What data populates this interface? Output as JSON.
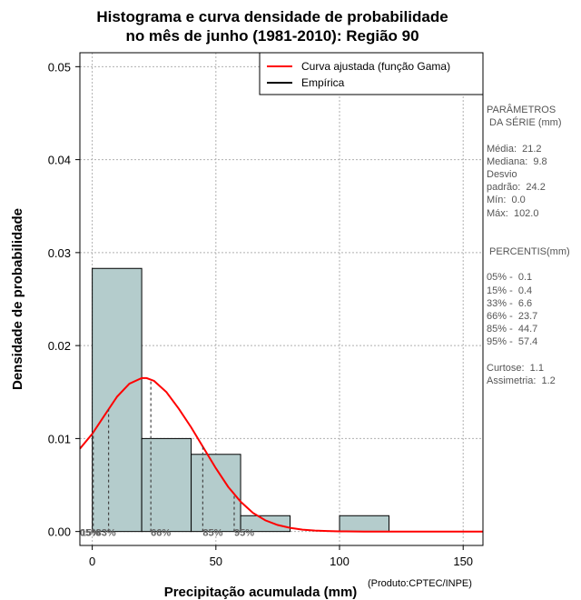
{
  "title_lines": [
    "Histograma e curva densidade de probabilidade",
    "no mês de junho (1981-2010): Região 90"
  ],
  "credit": "(Produto:CPTEC/INPE)",
  "side_panel": {
    "lines": [
      "PARÂMETROS",
      " DA SÉRIE (mm)",
      "",
      "Média:  21.2",
      "Mediana:  9.8",
      "Desvio",
      "padrão:  24.2",
      "Mín:  0.0",
      "Máx:  102.0",
      "",
      "",
      " PERCENTIS(mm)",
      "",
      "05% -  0.1",
      "15% -  0.4",
      "33% -  6.6",
      "66% -  23.7",
      "85% -  44.7",
      "95% -  57.4",
      "",
      "Curtose:  1.1",
      "Assimetria:  1.2"
    ]
  },
  "chart_data": {
    "type": "bar",
    "xlabel": "Precipitação acumulada (mm)",
    "ylabel": "Densidade de probabilidade",
    "xlim": [
      -5,
      158
    ],
    "ylim": [
      -0.0015,
      0.0515
    ],
    "xticks": [
      "0",
      "50",
      "100",
      "150"
    ],
    "xtick_values": [
      0,
      50,
      100,
      150
    ],
    "yticks": [
      "0.00",
      "0.01",
      "0.02",
      "0.03",
      "0.04",
      "0.05"
    ],
    "ytick_values": [
      0,
      0.01,
      0.02,
      0.03,
      0.04,
      0.05
    ],
    "grid": true,
    "bins": [
      {
        "x0": 0,
        "x1": 20,
        "density": 0.0283
      },
      {
        "x0": 20,
        "x1": 40,
        "density": 0.01
      },
      {
        "x0": 40,
        "x1": 60,
        "density": 0.0083
      },
      {
        "x0": 60,
        "x1": 80,
        "density": 0.0017
      },
      {
        "x0": 80,
        "x1": 100,
        "density": 0
      },
      {
        "x0": 100,
        "x1": 120,
        "density": 0.0017
      }
    ],
    "bar_color": "#b4cccc",
    "legend": {
      "position": "top-right",
      "entries": [
        {
          "label": "Curva ajustada (função Gama)",
          "color": "#ff0000"
        },
        {
          "label": "Empírica",
          "color": "#000000"
        }
      ]
    },
    "fitted_curve": {
      "name": "Curva ajustada (função Gama)",
      "color": "#ff0000",
      "x": [
        -5,
        0,
        5,
        10,
        15,
        20,
        22,
        25,
        30,
        35,
        40,
        45,
        50,
        55,
        60,
        65,
        70,
        75,
        80,
        85,
        90,
        95,
        100,
        110,
        120,
        130,
        140,
        158
      ],
      "y": [
        0.0089,
        0.0105,
        0.0125,
        0.0145,
        0.0159,
        0.0165,
        0.0165,
        0.0162,
        0.015,
        0.0132,
        0.0112,
        0.009,
        0.0068,
        0.0048,
        0.0032,
        0.002,
        0.0012,
        0.0007,
        0.0004,
        0.0002,
        0.0001,
        5e-05,
        2e-05,
        0,
        0,
        0,
        0,
        0
      ]
    },
    "percentiles": [
      {
        "label": "05%",
        "value": 0.1
      },
      {
        "label": "15%",
        "value": 0.4
      },
      {
        "label": "33%",
        "value": 6.6
      },
      {
        "label": "66%",
        "value": 23.7
      },
      {
        "label": "85%",
        "value": 44.7
      },
      {
        "label": "95%",
        "value": 57.4
      }
    ]
  }
}
